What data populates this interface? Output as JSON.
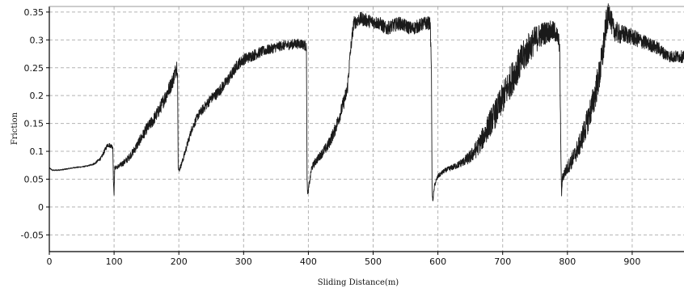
{
  "chart_data": {
    "type": "line",
    "title": "",
    "xlabel": "Sliding Distance(m)",
    "ylabel": "Friction",
    "xlim": [
      0,
      980
    ],
    "ylim": [
      -0.08,
      0.36
    ],
    "grid": true,
    "x_ticks": [
      0,
      100,
      200,
      300,
      400,
      500,
      600,
      700,
      800,
      900
    ],
    "x_tick_labels": [
      "0",
      "100",
      "200",
      "300",
      "400",
      "500",
      "600",
      "700",
      "800",
      "900"
    ],
    "y_ticks": [
      -0.05,
      0,
      0.05,
      0.1,
      0.15,
      0.2,
      0.25,
      0.3,
      0.35
    ],
    "y_tick_labels": [
      "-0.05",
      "0",
      "0.05",
      "0.1",
      "0.15",
      "0.2",
      "0.25",
      "0.3",
      "0.35"
    ],
    "colors": {
      "line": "#1a1a1a",
      "grid": "#b4b4b4",
      "axis": "#000000"
    },
    "series": [
      {
        "x": [
          0,
          5,
          10,
          20,
          30,
          40,
          50,
          60,
          70,
          80,
          85,
          90,
          95,
          98,
          99,
          100,
          101,
          105,
          110,
          120,
          130,
          140,
          150,
          160,
          170,
          180,
          190,
          195,
          197,
          198,
          199,
          200,
          205,
          210,
          220,
          230,
          240,
          250,
          260,
          270,
          280,
          290,
          300,
          310,
          320,
          330,
          340,
          350,
          360,
          370,
          380,
          390,
          395,
          397,
          398,
          399,
          400,
          405,
          410,
          420,
          430,
          440,
          450,
          455,
          460,
          465,
          470,
          480,
          490,
          500,
          510,
          520,
          530,
          540,
          550,
          560,
          570,
          580,
          588,
          590,
          591,
          592,
          595,
          600,
          610,
          620,
          630,
          640,
          650,
          660,
          670,
          680,
          690,
          700,
          710,
          720,
          730,
          740,
          750,
          760,
          770,
          780,
          785,
          788,
          790,
          791,
          792,
          795,
          800,
          810,
          820,
          830,
          840,
          850,
          855,
          860,
          865,
          870,
          880,
          890,
          900,
          910,
          920,
          930,
          940,
          950,
          960,
          970,
          980
        ],
        "y": [
          0.07,
          0.066,
          0.066,
          0.067,
          0.069,
          0.071,
          0.072,
          0.074,
          0.078,
          0.088,
          0.1,
          0.112,
          0.11,
          0.108,
          0.045,
          0.025,
          0.07,
          0.072,
          0.075,
          0.085,
          0.1,
          0.12,
          0.14,
          0.155,
          0.175,
          0.2,
          0.225,
          0.245,
          0.255,
          0.24,
          0.07,
          0.065,
          0.08,
          0.1,
          0.14,
          0.165,
          0.18,
          0.195,
          0.205,
          0.22,
          0.235,
          0.255,
          0.265,
          0.27,
          0.275,
          0.28,
          0.283,
          0.287,
          0.29,
          0.291,
          0.293,
          0.293,
          0.29,
          0.285,
          0.05,
          0.022,
          0.03,
          0.07,
          0.08,
          0.095,
          0.11,
          0.135,
          0.17,
          0.19,
          0.21,
          0.28,
          0.33,
          0.338,
          0.335,
          0.332,
          0.33,
          0.32,
          0.325,
          0.33,
          0.325,
          0.32,
          0.325,
          0.33,
          0.33,
          0.25,
          0.03,
          0.01,
          0.04,
          0.055,
          0.065,
          0.07,
          0.075,
          0.082,
          0.09,
          0.105,
          0.125,
          0.15,
          0.17,
          0.195,
          0.22,
          0.245,
          0.265,
          0.285,
          0.3,
          0.31,
          0.315,
          0.315,
          0.305,
          0.29,
          0.085,
          0.02,
          0.05,
          0.06,
          0.07,
          0.09,
          0.115,
          0.15,
          0.19,
          0.24,
          0.28,
          0.33,
          0.35,
          0.32,
          0.31,
          0.31,
          0.305,
          0.3,
          0.295,
          0.29,
          0.285,
          0.275,
          0.27,
          0.27,
          0.27
        ],
        "noise": [
          0.001,
          0.001,
          0.001,
          0.001,
          0.001,
          0.001,
          0.001,
          0.001,
          0.002,
          0.003,
          0.004,
          0.004,
          0.004,
          0.004,
          0.004,
          0.004,
          0.003,
          0.004,
          0.005,
          0.006,
          0.007,
          0.009,
          0.01,
          0.011,
          0.012,
          0.013,
          0.014,
          0.014,
          0.014,
          0.014,
          0.006,
          0.004,
          0.005,
          0.006,
          0.007,
          0.008,
          0.009,
          0.009,
          0.01,
          0.01,
          0.01,
          0.01,
          0.01,
          0.01,
          0.01,
          0.009,
          0.009,
          0.009,
          0.009,
          0.009,
          0.009,
          0.009,
          0.009,
          0.009,
          0.005,
          0.004,
          0.005,
          0.006,
          0.007,
          0.008,
          0.01,
          0.011,
          0.012,
          0.013,
          0.014,
          0.012,
          0.012,
          0.012,
          0.012,
          0.012,
          0.012,
          0.012,
          0.012,
          0.012,
          0.012,
          0.012,
          0.012,
          0.012,
          0.012,
          0.012,
          0.005,
          0.004,
          0.004,
          0.004,
          0.004,
          0.005,
          0.006,
          0.008,
          0.012,
          0.016,
          0.02,
          0.024,
          0.026,
          0.028,
          0.03,
          0.03,
          0.03,
          0.028,
          0.025,
          0.022,
          0.02,
          0.018,
          0.016,
          0.015,
          0.006,
          0.005,
          0.008,
          0.01,
          0.012,
          0.016,
          0.02,
          0.024,
          0.028,
          0.03,
          0.03,
          0.025,
          0.022,
          0.02,
          0.018,
          0.016,
          0.015,
          0.014,
          0.013,
          0.012,
          0.012,
          0.011,
          0.011,
          0.011,
          0.011
        ]
      }
    ]
  }
}
